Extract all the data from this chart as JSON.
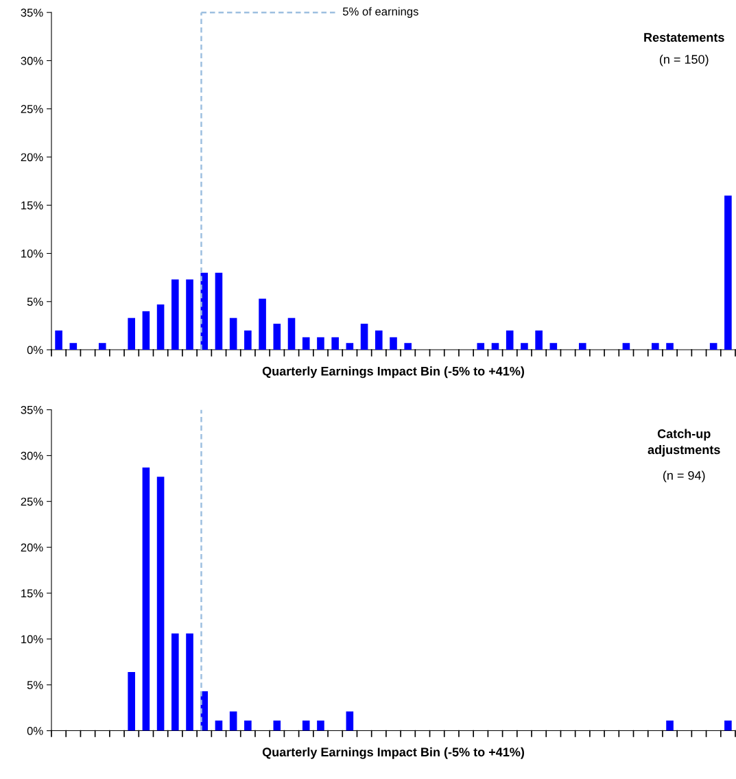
{
  "chart_data": [
    {
      "type": "bar",
      "xlabel": "Quarterly Earnings Impact Bin (-5% to +41%)",
      "annotations": [
        "5% of earnings",
        "Restatements",
        "(n = 150)"
      ],
      "categories": [
        null,
        null,
        null,
        null,
        null,
        null,
        null,
        null,
        null,
        null,
        null,
        null,
        null,
        null,
        null,
        null,
        null,
        null,
        null,
        null,
        null,
        null,
        null,
        null,
        null,
        null,
        null,
        null,
        null,
        null,
        null,
        null,
        null,
        null,
        null,
        null,
        null,
        null,
        null,
        null,
        null,
        null,
        null,
        null,
        null,
        null,
        null
      ],
      "values": [
        2.0,
        0.7,
        0,
        0.7,
        0,
        3.3,
        4.0,
        4.7,
        7.3,
        7.3,
        8.0,
        8.0,
        3.3,
        2.0,
        5.3,
        2.7,
        3.3,
        1.3,
        1.3,
        1.3,
        0.7,
        2.7,
        2.0,
        1.3,
        0.7,
        0,
        0,
        0,
        0,
        0.7,
        0.7,
        2.0,
        0.7,
        2.0,
        0.7,
        0,
        0.7,
        0,
        0,
        0.7,
        0,
        0.7,
        0.7,
        0,
        0,
        0.7,
        16.0
      ],
      "color": "#0000ff",
      "ylim": [
        0,
        35
      ],
      "yticks": [
        {
          "value": 0,
          "label": "0%"
        },
        {
          "value": 5,
          "label": "5%"
        },
        {
          "value": 10,
          "label": "10%"
        },
        {
          "value": 15,
          "label": "15%"
        },
        {
          "value": 20,
          "label": "20%"
        },
        {
          "value": 25,
          "label": "25%"
        },
        {
          "value": 30,
          "label": "30%"
        },
        {
          "value": 35,
          "label": "35%"
        }
      ],
      "grid": false,
      "legend": false
    },
    {
      "type": "bar",
      "xlabel": "Quarterly Earnings Impact Bin (-5% to +41%)",
      "annotations": [
        "Catch-up\nadjustments",
        "(n = 94)"
      ],
      "categories": [
        null,
        null,
        null,
        null,
        null,
        null,
        null,
        null,
        null,
        null,
        null,
        null,
        null,
        null,
        null,
        null,
        null,
        null,
        null,
        null,
        null,
        null,
        null,
        null,
        null,
        null,
        null,
        null,
        null,
        null,
        null,
        null,
        null,
        null,
        null,
        null,
        null,
        null,
        null,
        null,
        null,
        null,
        null,
        null,
        null,
        null,
        null
      ],
      "values": [
        0,
        0,
        0,
        0,
        0,
        6.4,
        28.7,
        27.7,
        10.6,
        10.6,
        4.3,
        1.1,
        2.1,
        1.1,
        0,
        1.1,
        0,
        1.1,
        1.1,
        0,
        2.1,
        0,
        0,
        0,
        0,
        0,
        0,
        0,
        0,
        0,
        0,
        0,
        0,
        0,
        0,
        0,
        0,
        0,
        0,
        0,
        0,
        0,
        1.1,
        0,
        0,
        0,
        1.1
      ],
      "color": "#0000ff",
      "ylim": [
        0,
        35
      ],
      "yticks": [
        {
          "value": 0,
          "label": "0%"
        },
        {
          "value": 5,
          "label": "5%"
        },
        {
          "value": 10,
          "label": "10%"
        },
        {
          "value": 15,
          "label": "15%"
        },
        {
          "value": 20,
          "label": "20%"
        },
        {
          "value": 25,
          "label": "25%"
        },
        {
          "value": 30,
          "label": "30%"
        },
        {
          "value": 35,
          "label": "35%"
        }
      ],
      "grid": false,
      "legend": false
    }
  ]
}
